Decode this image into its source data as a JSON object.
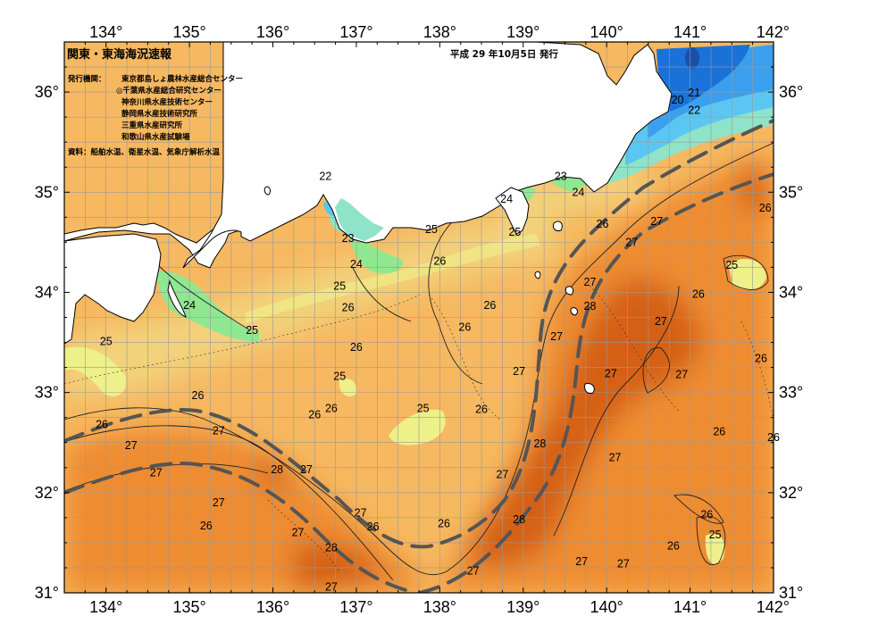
{
  "header": {
    "title": "関東・東海海況速報",
    "issued": "平成 29 年10月5日 発行",
    "issuer_label": "発行機関：",
    "organizations": [
      "東京都島しょ農林水産総合センター",
      "◎千葉県水産総合研究センター",
      "神奈川県水産技術センター",
      "静岡県水産技術研究所",
      "三重県水産研究所",
      "和歌山県水産試験場"
    ],
    "source": "資料：船舶水温、衛星水温、気象庁解析水温"
  },
  "axes": {
    "lon_labels": [
      "134°",
      "135°",
      "136°",
      "137°",
      "138°",
      "139°",
      "140°",
      "141°",
      "142°"
    ],
    "lat_labels": [
      "36°",
      "35°",
      "34°",
      "33°",
      "32°",
      "31°"
    ],
    "lon_range": [
      133.5,
      142
    ],
    "lat_range": [
      31,
      36.5
    ]
  },
  "legend_colors": {
    "t20": "#1a72d8",
    "t21": "#3aa0ee",
    "t22": "#5cc6f2",
    "t23": "#8fe3c8",
    "t24": "#8fe890",
    "t25": "#eef08a",
    "t26": "#f6b860",
    "t27": "#ee8c30",
    "t28": "#d46018",
    "land": "#ffffff",
    "front": "#555555"
  },
  "isotherm_labels": [
    {
      "value": "20",
      "lon": 140.85,
      "lat": 35.92
    },
    {
      "value": "21",
      "lon": 141.05,
      "lat": 35.99
    },
    {
      "value": "22",
      "lon": 141.05,
      "lat": 35.82
    },
    {
      "value": "22",
      "lon": 136.63,
      "lat": 35.16
    },
    {
      "value": "23",
      "lon": 139.45,
      "lat": 35.16
    },
    {
      "value": "24",
      "lon": 139.66,
      "lat": 35.0
    },
    {
      "value": "24",
      "lon": 138.8,
      "lat": 34.93
    },
    {
      "value": "23",
      "lon": 136.9,
      "lat": 34.54
    },
    {
      "value": "24",
      "lon": 137.0,
      "lat": 34.28
    },
    {
      "value": "25",
      "lon": 137.9,
      "lat": 34.63
    },
    {
      "value": "25",
      "lon": 138.9,
      "lat": 34.6
    },
    {
      "value": "26",
      "lon": 139.95,
      "lat": 34.68
    },
    {
      "value": "27",
      "lon": 140.6,
      "lat": 34.71
    },
    {
      "value": "26",
      "lon": 141.9,
      "lat": 34.84
    },
    {
      "value": "27",
      "lon": 140.3,
      "lat": 34.5
    },
    {
      "value": "25",
      "lon": 141.5,
      "lat": 34.27
    },
    {
      "value": "26",
      "lon": 138.0,
      "lat": 34.31
    },
    {
      "value": "25",
      "lon": 136.8,
      "lat": 34.06
    },
    {
      "value": "24",
      "lon": 135.0,
      "lat": 33.87
    },
    {
      "value": "25",
      "lon": 135.75,
      "lat": 33.62
    },
    {
      "value": "26",
      "lon": 136.9,
      "lat": 33.85
    },
    {
      "value": "26",
      "lon": 138.6,
      "lat": 33.87
    },
    {
      "value": "27",
      "lon": 139.8,
      "lat": 34.1
    },
    {
      "value": "28",
      "lon": 139.8,
      "lat": 33.86
    },
    {
      "value": "26",
      "lon": 141.1,
      "lat": 33.98
    },
    {
      "value": "27",
      "lon": 140.65,
      "lat": 33.71
    },
    {
      "value": "26",
      "lon": 138.3,
      "lat": 33.65
    },
    {
      "value": "25",
      "lon": 134.0,
      "lat": 33.51
    },
    {
      "value": "26",
      "lon": 137.0,
      "lat": 33.45
    },
    {
      "value": "27",
      "lon": 139.4,
      "lat": 33.56
    },
    {
      "value": "26",
      "lon": 141.85,
      "lat": 33.34
    },
    {
      "value": "25",
      "lon": 136.8,
      "lat": 33.16
    },
    {
      "value": "27",
      "lon": 138.95,
      "lat": 33.21
    },
    {
      "value": "27",
      "lon": 140.05,
      "lat": 33.19
    },
    {
      "value": "27",
      "lon": 140.9,
      "lat": 33.18
    },
    {
      "value": "25",
      "lon": 137.8,
      "lat": 32.84
    },
    {
      "value": "26",
      "lon": 138.5,
      "lat": 32.83
    },
    {
      "value": "26",
      "lon": 135.1,
      "lat": 32.97
    },
    {
      "value": "26",
      "lon": 136.5,
      "lat": 32.78
    },
    {
      "value": "26",
      "lon": 136.7,
      "lat": 32.84
    },
    {
      "value": "26",
      "lon": 133.95,
      "lat": 32.68
    },
    {
      "value": "27",
      "lon": 134.3,
      "lat": 32.47
    },
    {
      "value": "27",
      "lon": 135.35,
      "lat": 32.62
    },
    {
      "value": "28",
      "lon": 139.2,
      "lat": 32.49
    },
    {
      "value": "27",
      "lon": 140.1,
      "lat": 32.35
    },
    {
      "value": "26",
      "lon": 141.35,
      "lat": 32.61
    },
    {
      "value": "26",
      "lon": 142.0,
      "lat": 32.55
    },
    {
      "value": "27",
      "lon": 134.6,
      "lat": 32.2
    },
    {
      "value": "28",
      "lon": 136.05,
      "lat": 32.23
    },
    {
      "value": "27",
      "lon": 136.4,
      "lat": 32.23
    },
    {
      "value": "27",
      "lon": 138.75,
      "lat": 32.18
    },
    {
      "value": "27",
      "lon": 135.35,
      "lat": 31.9
    },
    {
      "value": "27",
      "lon": 137.05,
      "lat": 31.8
    },
    {
      "value": "26",
      "lon": 135.2,
      "lat": 31.67
    },
    {
      "value": "26",
      "lon": 137.2,
      "lat": 31.66
    },
    {
      "value": "26",
      "lon": 138.05,
      "lat": 31.69
    },
    {
      "value": "28",
      "lon": 138.95,
      "lat": 31.73
    },
    {
      "value": "27",
      "lon": 136.3,
      "lat": 31.6
    },
    {
      "value": "28",
      "lon": 136.7,
      "lat": 31.45
    },
    {
      "value": "26",
      "lon": 141.2,
      "lat": 31.78
    },
    {
      "value": "25",
      "lon": 141.3,
      "lat": 31.58
    },
    {
      "value": "26",
      "lon": 140.8,
      "lat": 31.47
    },
    {
      "value": "27",
      "lon": 139.7,
      "lat": 31.31
    },
    {
      "value": "27",
      "lon": 140.2,
      "lat": 31.29
    },
    {
      "value": "27",
      "lon": 138.4,
      "lat": 31.22
    },
    {
      "value": "27",
      "lon": 136.7,
      "lat": 31.06
    }
  ]
}
